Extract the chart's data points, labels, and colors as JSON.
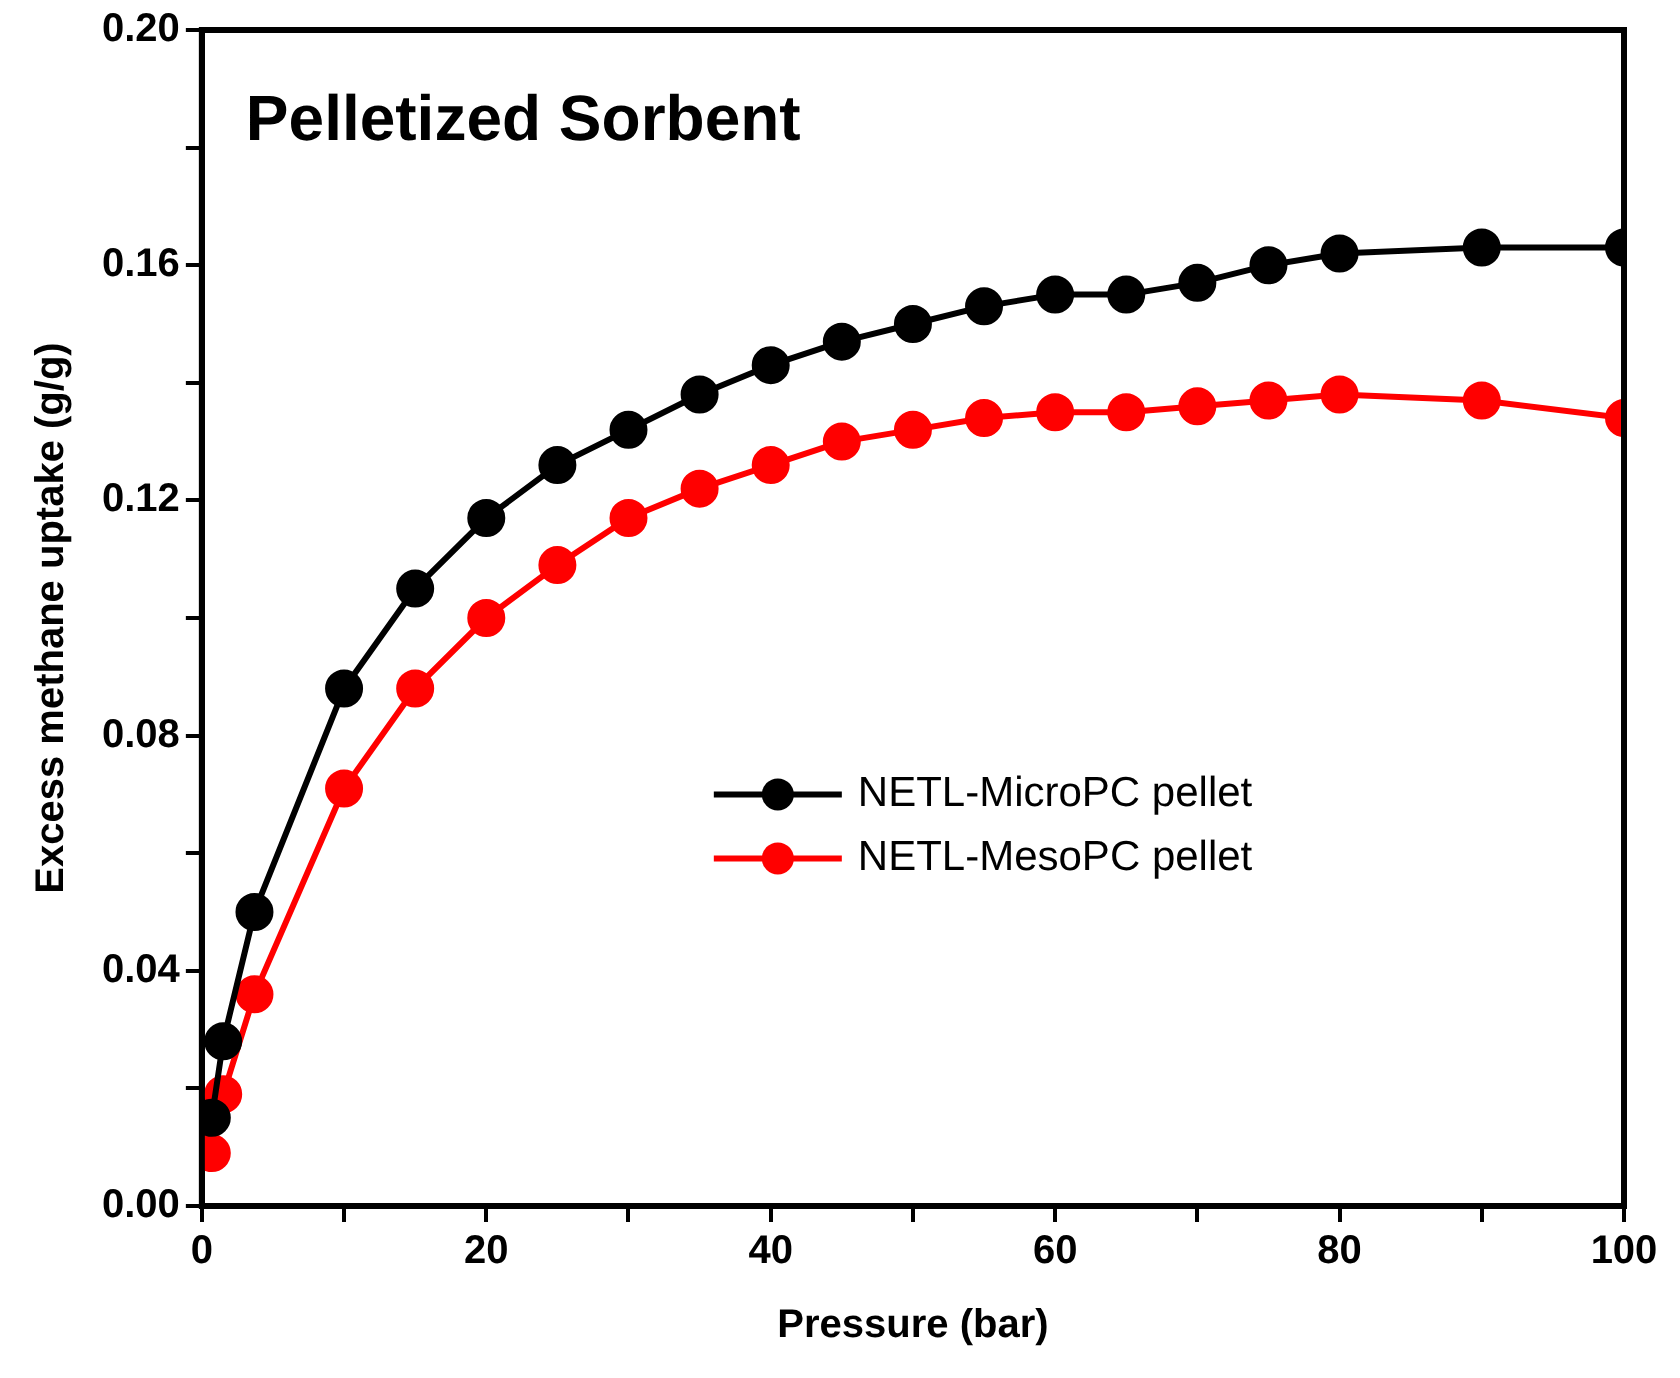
{
  "chart_data": {
    "type": "line",
    "title": "Pelletized Sorbent",
    "xlabel": "Pressure (bar)",
    "ylabel": "Excess methane uptake (g/g)",
    "xlim": [
      0,
      100
    ],
    "ylim": [
      0,
      0.2
    ],
    "xticks": [
      0,
      {
        "value": 10,
        "label": null
      },
      20,
      {
        "value": 30,
        "label": null
      },
      40,
      {
        "value": 50,
        "label": null
      },
      60,
      {
        "value": 70,
        "label": null
      },
      80,
      {
        "value": 90,
        "label": null
      },
      100
    ],
    "yticks": [
      {
        "value": 0,
        "label": "0.00"
      },
      {
        "value": 0.02,
        "label": null
      },
      {
        "value": 0.04,
        "label": "0.04"
      },
      {
        "value": 0.06,
        "label": null
      },
      {
        "value": 0.08,
        "label": "0.08"
      },
      {
        "value": 0.1,
        "label": null
      },
      {
        "value": 0.12,
        "label": "0.12"
      },
      {
        "value": 0.14,
        "label": null
      },
      {
        "value": 0.16,
        "label": "0.16"
      },
      {
        "value": 0.18,
        "label": null
      },
      {
        "value": 0.2,
        "label": "0.20"
      }
    ],
    "grid": false,
    "legend": "right",
    "marker": "circle",
    "line_style": "solid",
    "x": [
      0.7,
      1.5,
      3.7,
      10,
      15,
      20,
      25,
      30,
      35,
      40,
      45,
      50,
      55,
      60,
      65,
      70,
      75,
      80,
      90,
      100
    ],
    "series": [
      {
        "name": "NETL-MicroPC pellet",
        "color": "#000000",
        "values": [
          0.015,
          0.028,
          0.05,
          0.088,
          0.105,
          0.117,
          0.126,
          0.132,
          0.138,
          0.143,
          0.147,
          0.15,
          0.153,
          0.155,
          0.155,
          0.157,
          0.16,
          0.162,
          0.163,
          0.163
        ]
      },
      {
        "name": "NETL-MesoPC pellet",
        "color": "#ff0000",
        "values": [
          0.009,
          0.019,
          0.036,
          0.071,
          0.088,
          0.1,
          0.109,
          0.117,
          0.122,
          0.126,
          0.13,
          0.132,
          0.134,
          0.135,
          0.135,
          0.136,
          0.137,
          0.138,
          0.137,
          0.134
        ]
      }
    ]
  }
}
